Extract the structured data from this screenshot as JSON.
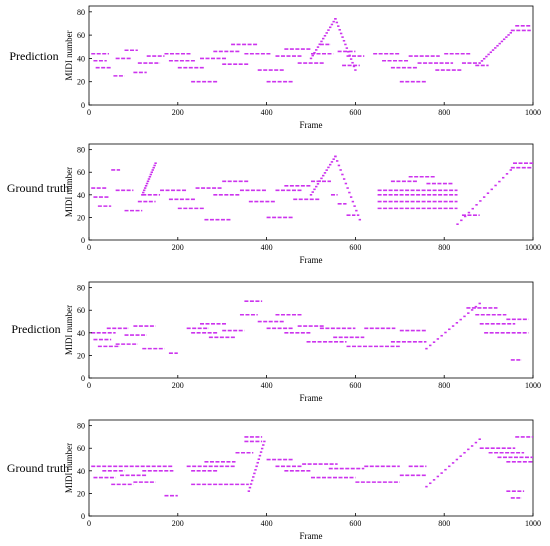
{
  "colors": {
    "note": "#cc33ee",
    "axis": "#000000",
    "background": "#ffffff"
  },
  "chart_data": [
    {
      "type": "scatter",
      "row_label": "Prediction",
      "xlabel": "Frame",
      "ylabel": "MIDI number",
      "xlim": [
        0,
        1000
      ],
      "ylim": [
        0,
        85
      ],
      "xticks": [
        "0",
        "200",
        "400",
        "600",
        "800",
        "1000"
      ],
      "yticks": [
        "0",
        "20",
        "40",
        "60",
        "80"
      ],
      "segments": [
        {
          "x": [
            5,
            45
          ],
          "y": 44
        },
        {
          "x": [
            10,
            40
          ],
          "y": 38
        },
        {
          "x": [
            15,
            50
          ],
          "y": 32
        },
        {
          "x": [
            55,
            80
          ],
          "y": 25
        },
        {
          "x": [
            60,
            95
          ],
          "y": 40
        },
        {
          "x": [
            80,
            110
          ],
          "y": 47
        },
        {
          "x": [
            100,
            130
          ],
          "y": 28
        },
        {
          "x": [
            110,
            160
          ],
          "y": 36
        },
        {
          "x": [
            130,
            170
          ],
          "y": 42
        },
        {
          "x": [
            170,
            230
          ],
          "y": 44
        },
        {
          "x": [
            180,
            240
          ],
          "y": 38
        },
        {
          "x": [
            200,
            260
          ],
          "y": 32
        },
        {
          "x": [
            230,
            290
          ],
          "y": 20
        },
        {
          "x": [
            250,
            310
          ],
          "y": 40
        },
        {
          "x": [
            280,
            340
          ],
          "y": 46
        },
        {
          "x": [
            300,
            360
          ],
          "y": 35
        },
        {
          "x": [
            320,
            380
          ],
          "y": 52
        },
        {
          "x": [
            350,
            410
          ],
          "y": 44
        },
        {
          "x": [
            380,
            440
          ],
          "y": 30
        },
        {
          "x": [
            400,
            460
          ],
          "y": 20
        },
        {
          "x": [
            420,
            480
          ],
          "y": 42
        },
        {
          "x": [
            440,
            500
          ],
          "y": 48
        },
        {
          "x": [
            470,
            530
          ],
          "y": 36
        },
        {
          "x": [
            500,
            550
          ],
          "y": 44
        },
        {
          "x": [
            520,
            545
          ],
          "y": 52
        },
        {
          "x": [
            560,
            600
          ],
          "y": 46
        },
        {
          "x": [
            570,
            610
          ],
          "y": 34
        },
        {
          "x": [
            580,
            620
          ],
          "y": 42
        },
        {
          "x": [
            640,
            700
          ],
          "y": 44
        },
        {
          "x": [
            660,
            720
          ],
          "y": 38
        },
        {
          "x": [
            680,
            740
          ],
          "y": 32
        },
        {
          "x": [
            700,
            760
          ],
          "y": 20
        },
        {
          "x": [
            720,
            790
          ],
          "y": 42
        },
        {
          "x": [
            740,
            820
          ],
          "y": 36
        },
        {
          "x": [
            780,
            840
          ],
          "y": 30
        },
        {
          "x": [
            800,
            860
          ],
          "y": 44
        },
        {
          "x": [
            840,
            880
          ],
          "y": 36
        },
        {
          "x": [
            870,
            900
          ],
          "y": 34
        },
        {
          "x": [
            950,
            995
          ],
          "y": 64
        },
        {
          "x": [
            960,
            995
          ],
          "y": 68
        }
      ],
      "ramps": [
        {
          "x": [
            500,
            555
          ],
          "y": [
            40,
            74
          ]
        },
        {
          "x": [
            555,
            600
          ],
          "y": [
            74,
            30
          ]
        },
        {
          "x": [
            880,
            950
          ],
          "y": [
            36,
            62
          ]
        }
      ]
    },
    {
      "type": "scatter",
      "row_label": "Ground truth",
      "xlabel": "Frame",
      "ylabel": "MIDI number",
      "xlim": [
        0,
        1000
      ],
      "ylim": [
        0,
        85
      ],
      "xticks": [
        "0",
        "200",
        "400",
        "600",
        "800",
        "1000"
      ],
      "yticks": [
        "0",
        "20",
        "40",
        "60",
        "80"
      ],
      "segments": [
        {
          "x": [
            5,
            40
          ],
          "y": 46
        },
        {
          "x": [
            10,
            45
          ],
          "y": 38
        },
        {
          "x": [
            20,
            50
          ],
          "y": 30
        },
        {
          "x": [
            50,
            70
          ],
          "y": 62
        },
        {
          "x": [
            60,
            100
          ],
          "y": 44
        },
        {
          "x": [
            80,
            120
          ],
          "y": 26
        },
        {
          "x": [
            110,
            150
          ],
          "y": 34
        },
        {
          "x": [
            120,
            160
          ],
          "y": 40
        },
        {
          "x": [
            160,
            220
          ],
          "y": 44
        },
        {
          "x": [
            180,
            240
          ],
          "y": 36
        },
        {
          "x": [
            200,
            260
          ],
          "y": 28
        },
        {
          "x": [
            240,
            300
          ],
          "y": 46
        },
        {
          "x": [
            260,
            320
          ],
          "y": 18
        },
        {
          "x": [
            280,
            340
          ],
          "y": 40
        },
        {
          "x": [
            300,
            360
          ],
          "y": 52
        },
        {
          "x": [
            340,
            400
          ],
          "y": 44
        },
        {
          "x": [
            360,
            420
          ],
          "y": 34
        },
        {
          "x": [
            400,
            460
          ],
          "y": 20
        },
        {
          "x": [
            420,
            480
          ],
          "y": 44
        },
        {
          "x": [
            440,
            500
          ],
          "y": 48
        },
        {
          "x": [
            460,
            520
          ],
          "y": 36
        },
        {
          "x": [
            500,
            545
          ],
          "y": 52
        },
        {
          "x": [
            545,
            560
          ],
          "y": 40
        },
        {
          "x": [
            560,
            580
          ],
          "y": 32
        },
        {
          "x": [
            580,
            600
          ],
          "y": 22
        },
        {
          "x": [
            650,
            830
          ],
          "y": 44
        },
        {
          "x": [
            650,
            830
          ],
          "y": 40
        },
        {
          "x": [
            650,
            830
          ],
          "y": 34
        },
        {
          "x": [
            650,
            830
          ],
          "y": 28
        },
        {
          "x": [
            680,
            740
          ],
          "y": 52
        },
        {
          "x": [
            720,
            780
          ],
          "y": 56
        },
        {
          "x": [
            760,
            820
          ],
          "y": 50
        },
        {
          "x": [
            840,
            880
          ],
          "y": 22
        },
        {
          "x": [
            950,
            1000
          ],
          "y": 64
        },
        {
          "x": [
            955,
            1000
          ],
          "y": 68
        }
      ],
      "ramps": [
        {
          "x": [
            120,
            150
          ],
          "y": [
            40,
            68
          ]
        },
        {
          "x": [
            500,
            555
          ],
          "y": [
            40,
            74
          ]
        },
        {
          "x": [
            555,
            610
          ],
          "y": [
            74,
            18
          ]
        },
        {
          "x": [
            830,
            950
          ],
          "y": [
            14,
            62
          ]
        }
      ]
    },
    {
      "type": "scatter",
      "row_label": "Prediction",
      "xlabel": "Frame",
      "ylabel": "MIDI number",
      "xlim": [
        0,
        1000
      ],
      "ylim": [
        0,
        85
      ],
      "xticks": [
        "0",
        "200",
        "400",
        "600",
        "800",
        "1000"
      ],
      "yticks": [
        "0",
        "20",
        "40",
        "60",
        "80"
      ],
      "segments": [
        {
          "x": [
            5,
            60
          ],
          "y": 40
        },
        {
          "x": [
            10,
            50
          ],
          "y": 34
        },
        {
          "x": [
            20,
            70
          ],
          "y": 28
        },
        {
          "x": [
            40,
            90
          ],
          "y": 44
        },
        {
          "x": [
            60,
            110
          ],
          "y": 30
        },
        {
          "x": [
            80,
            130
          ],
          "y": 38
        },
        {
          "x": [
            100,
            150
          ],
          "y": 46
        },
        {
          "x": [
            120,
            170
          ],
          "y": 26
        },
        {
          "x": [
            180,
            200
          ],
          "y": 22
        },
        {
          "x": [
            220,
            270
          ],
          "y": 44
        },
        {
          "x": [
            230,
            290
          ],
          "y": 40
        },
        {
          "x": [
            250,
            310
          ],
          "y": 48
        },
        {
          "x": [
            270,
            330
          ],
          "y": 36
        },
        {
          "x": [
            300,
            350
          ],
          "y": 42
        },
        {
          "x": [
            340,
            380
          ],
          "y": 56
        },
        {
          "x": [
            350,
            390
          ],
          "y": 68
        },
        {
          "x": [
            380,
            440
          ],
          "y": 50
        },
        {
          "x": [
            400,
            460
          ],
          "y": 44
        },
        {
          "x": [
            420,
            480
          ],
          "y": 56
        },
        {
          "x": [
            440,
            500
          ],
          "y": 40
        },
        {
          "x": [
            470,
            530
          ],
          "y": 46
        },
        {
          "x": [
            490,
            580
          ],
          "y": 32
        },
        {
          "x": [
            520,
            600
          ],
          "y": 44
        },
        {
          "x": [
            550,
            620
          ],
          "y": 36
        },
        {
          "x": [
            580,
            700
          ],
          "y": 28
        },
        {
          "x": [
            620,
            690
          ],
          "y": 44
        },
        {
          "x": [
            680,
            760
          ],
          "y": 32
        },
        {
          "x": [
            700,
            760
          ],
          "y": 42
        },
        {
          "x": [
            850,
            920
          ],
          "y": 62
        },
        {
          "x": [
            870,
            940
          ],
          "y": 56
        },
        {
          "x": [
            880,
            960
          ],
          "y": 48
        },
        {
          "x": [
            890,
            990
          ],
          "y": 40
        },
        {
          "x": [
            940,
            990
          ],
          "y": 52
        },
        {
          "x": [
            950,
            975
          ],
          "y": 16
        }
      ],
      "ramps": [
        {
          "x": [
            760,
            880
          ],
          "y": [
            26,
            66
          ]
        }
      ]
    },
    {
      "type": "scatter",
      "row_label": "Ground truth",
      "xlabel": "Frame",
      "ylabel": "MIDI number",
      "xlim": [
        0,
        1000
      ],
      "ylim": [
        0,
        85
      ],
      "xticks": [
        "0",
        "200",
        "400",
        "600",
        "800",
        "1000"
      ],
      "yticks": [
        "0",
        "20",
        "40",
        "60",
        "80"
      ],
      "segments": [
        {
          "x": [
            5,
            190
          ],
          "y": 44
        },
        {
          "x": [
            10,
            60
          ],
          "y": 34
        },
        {
          "x": [
            30,
            80
          ],
          "y": 40
        },
        {
          "x": [
            50,
            100
          ],
          "y": 28
        },
        {
          "x": [
            70,
            130
          ],
          "y": 36
        },
        {
          "x": [
            100,
            150
          ],
          "y": 30
        },
        {
          "x": [
            120,
            190
          ],
          "y": 40
        },
        {
          "x": [
            170,
            200
          ],
          "y": 18
        },
        {
          "x": [
            220,
            330
          ],
          "y": 44
        },
        {
          "x": [
            230,
            290
          ],
          "y": 40
        },
        {
          "x": [
            260,
            330
          ],
          "y": 48
        },
        {
          "x": [
            230,
            360
          ],
          "y": 28
        },
        {
          "x": [
            330,
            370
          ],
          "y": 56
        },
        {
          "x": [
            350,
            390
          ],
          "y": 70
        },
        {
          "x": [
            350,
            390
          ],
          "y": 66
        },
        {
          "x": [
            400,
            460
          ],
          "y": 50
        },
        {
          "x": [
            420,
            480
          ],
          "y": 44
        },
        {
          "x": [
            440,
            500
          ],
          "y": 40
        },
        {
          "x": [
            480,
            560
          ],
          "y": 46
        },
        {
          "x": [
            500,
            600
          ],
          "y": 34
        },
        {
          "x": [
            540,
            620
          ],
          "y": 42
        },
        {
          "x": [
            600,
            700
          ],
          "y": 30
        },
        {
          "x": [
            620,
            700
          ],
          "y": 44
        },
        {
          "x": [
            700,
            760
          ],
          "y": 36
        },
        {
          "x": [
            720,
            760
          ],
          "y": 44
        },
        {
          "x": [
            880,
            960
          ],
          "y": 60
        },
        {
          "x": [
            900,
            980
          ],
          "y": 56
        },
        {
          "x": [
            920,
            1000
          ],
          "y": 52
        },
        {
          "x": [
            940,
            1000
          ],
          "y": 48
        },
        {
          "x": [
            960,
            1000
          ],
          "y": 70
        },
        {
          "x": [
            940,
            980
          ],
          "y": 22
        },
        {
          "x": [
            950,
            975
          ],
          "y": 16
        }
      ],
      "ramps": [
        {
          "x": [
            360,
            395
          ],
          "y": [
            22,
            66
          ]
        },
        {
          "x": [
            760,
            880
          ],
          "y": [
            26,
            68
          ]
        }
      ]
    }
  ]
}
